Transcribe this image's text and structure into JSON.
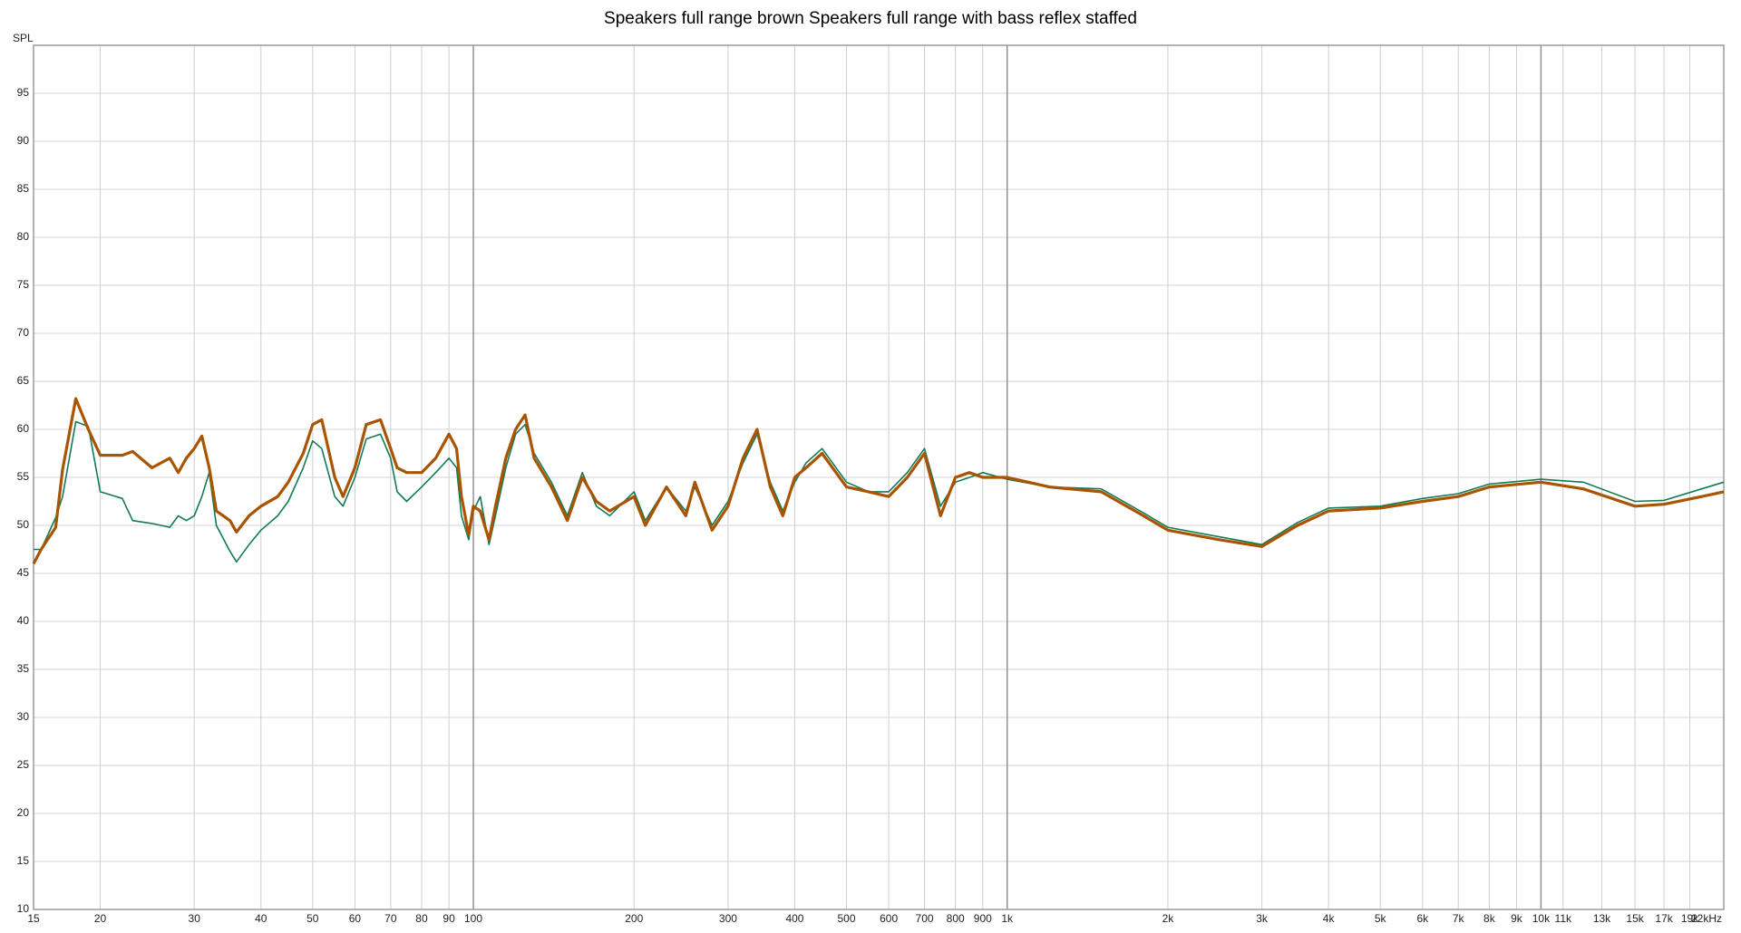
{
  "chart_data": {
    "type": "line",
    "title": "Speakers full range brown Speakers full range with bass reflex staffed",
    "y_label": "SPL",
    "x_scale": "log",
    "grid": true,
    "xlim": [
      15,
      22000
    ],
    "ylim": [
      10,
      100
    ],
    "yticks": [
      10,
      15,
      20,
      25,
      30,
      35,
      40,
      45,
      50,
      55,
      60,
      65,
      70,
      75,
      80,
      85,
      90,
      95
    ],
    "xticks": [
      15,
      20,
      30,
      40,
      50,
      60,
      70,
      80,
      90,
      100,
      200,
      300,
      400,
      500,
      600,
      700,
      800,
      900,
      {
        "value": 1000,
        "label": "1k"
      },
      {
        "value": 2000,
        "label": "2k"
      },
      {
        "value": 3000,
        "label": "3k"
      },
      {
        "value": 4000,
        "label": "4k"
      },
      {
        "value": 5000,
        "label": "5k"
      },
      {
        "value": 6000,
        "label": "6k"
      },
      {
        "value": 7000,
        "label": "7k"
      },
      {
        "value": 8000,
        "label": "8k"
      },
      {
        "value": 9000,
        "label": "9k"
      },
      {
        "value": 10000,
        "label": "10k"
      },
      {
        "value": 11000,
        "label": "11k"
      },
      {
        "value": 13000,
        "label": "13k"
      },
      {
        "value": 15000,
        "label": "15k"
      },
      {
        "value": 17000,
        "label": "17k"
      },
      {
        "value": 19000,
        "label": "19k"
      },
      {
        "value": 22000,
        "label": "22kHz"
      }
    ],
    "x": [
      15,
      15.5,
      16.5,
      17,
      18,
      19,
      20,
      22,
      23,
      25,
      27,
      28,
      29,
      30,
      31,
      32,
      33,
      35,
      36,
      38,
      40,
      43,
      45,
      48,
      50,
      52,
      55,
      57,
      60,
      63,
      67,
      70,
      72,
      75,
      80,
      85,
      90,
      93,
      95,
      98,
      100,
      103,
      107,
      110,
      115,
      120,
      125,
      130,
      140,
      150,
      160,
      170,
      180,
      200,
      210,
      230,
      250,
      260,
      280,
      300,
      320,
      340,
      360,
      380,
      400,
      420,
      450,
      500,
      550,
      600,
      650,
      700,
      750,
      800,
      850,
      900,
      1000,
      1200,
      1500,
      1800,
      2000,
      2500,
      3000,
      3500,
      4000,
      5000,
      6000,
      7000,
      8000,
      10000,
      12000,
      15000,
      17000,
      20000,
      22000
    ],
    "series": [
      {
        "color": "#137a55",
        "width": 1.6,
        "values": [
          47.5,
          47.5,
          50.8,
          53,
          60.8,
          60.3,
          53.5,
          52.8,
          50.5,
          50.2,
          49.8,
          51,
          50.5,
          51,
          53,
          55.5,
          50,
          47.3,
          46.2,
          48,
          49.5,
          51,
          52.5,
          56,
          58.8,
          58,
          53,
          52,
          55,
          59,
          59.5,
          57,
          53.5,
          52.5,
          54,
          55.5,
          57,
          56,
          51,
          48.5,
          51.5,
          53,
          48,
          51,
          56,
          59.5,
          60.5,
          57.5,
          54.5,
          51,
          55.5,
          52,
          51,
          53.5,
          50.5,
          54,
          51.5,
          54,
          50,
          52.5,
          56.5,
          59.5,
          54.5,
          51.5,
          54.5,
          56.5,
          58,
          54.5,
          53.5,
          53.5,
          55.5,
          58,
          52,
          54.5,
          55,
          55.5,
          54.8,
          54,
          53.8,
          51.3,
          49.8,
          48.8,
          48,
          50.3,
          51.8,
          52,
          52.8,
          53.3,
          54.3,
          54.8,
          54.5,
          52.5,
          52.6,
          53.8,
          54.5
        ]
      },
      {
        "color": "#a85400",
        "width": 3.2,
        "values": [
          46,
          47.5,
          49.8,
          55.8,
          63.2,
          60,
          57.3,
          57.3,
          57.7,
          56,
          57,
          55.5,
          57,
          58,
          59.3,
          56,
          51.5,
          50.5,
          49.3,
          51,
          52,
          53,
          54.5,
          57.5,
          60.5,
          61,
          55,
          53,
          56,
          60.5,
          61,
          58,
          56,
          55.5,
          55.5,
          57,
          59.5,
          58,
          53,
          49,
          52,
          51.5,
          48.5,
          52,
          57,
          60,
          61.5,
          57,
          54,
          50.5,
          55,
          52.5,
          51.5,
          53,
          50,
          54,
          51,
          54.5,
          49.5,
          52,
          57,
          60,
          54,
          51,
          55,
          56,
          57.5,
          54,
          53.5,
          53,
          55,
          57.5,
          51,
          55,
          55.5,
          55,
          55,
          54,
          53.5,
          51,
          49.5,
          48.5,
          47.8,
          50,
          51.5,
          51.8,
          52.5,
          53,
          54,
          54.5,
          53.8,
          52,
          52.2,
          53,
          53.5
        ]
      }
    ]
  }
}
